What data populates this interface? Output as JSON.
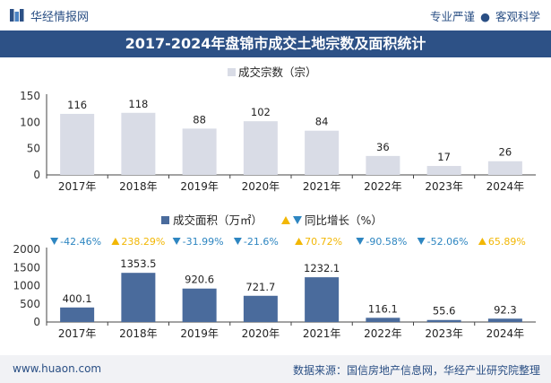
{
  "header": {
    "brand": "华经情报网",
    "tag_left": "专业严谨",
    "tag_right": "客观科学"
  },
  "title": "2017-2024年盘锦市成交土地宗数及面积统计",
  "footer": {
    "site": "www.huaon.com",
    "source": "数据来源：国信房地产信息网，华经产业研究院整理"
  },
  "chart_data": [
    {
      "type": "bar",
      "categories": [
        "2017年",
        "2018年",
        "2019年",
        "2020年",
        "2021年",
        "2022年",
        "2023年",
        "2024年"
      ],
      "series": [
        {
          "name": "成交宗数（宗）",
          "values": [
            116,
            118,
            88,
            102,
            84,
            36,
            17,
            26
          ],
          "color": "#d9dce6"
        }
      ],
      "ylim": [
        0,
        150
      ],
      "yticks": [
        0,
        50,
        100,
        150
      ],
      "legend": "top-center",
      "grid": false
    },
    {
      "type": "bar",
      "categories": [
        "2017年",
        "2018年",
        "2019年",
        "2020年",
        "2021年",
        "2022年",
        "2023年",
        "2024年"
      ],
      "series": [
        {
          "name": "成交面积（万㎡）",
          "values": [
            400.1,
            1353.5,
            920.6,
            721.7,
            1232.1,
            116.1,
            55.6,
            92.3
          ],
          "color": "#4a6b9c"
        }
      ],
      "growth": {
        "name": "同比增长（%）",
        "labels": [
          "-42.46%",
          "238.29%",
          "-31.99%",
          "-21.6%",
          "70.72%",
          "-90.58%",
          "-52.06%",
          "65.89%"
        ],
        "up_color": "#f2b705",
        "down_color": "#2e86c1"
      },
      "ylim": [
        0,
        2000
      ],
      "yticks": [
        0,
        500,
        1000,
        1500,
        2000
      ],
      "legend": "top-center",
      "grid": false
    }
  ]
}
